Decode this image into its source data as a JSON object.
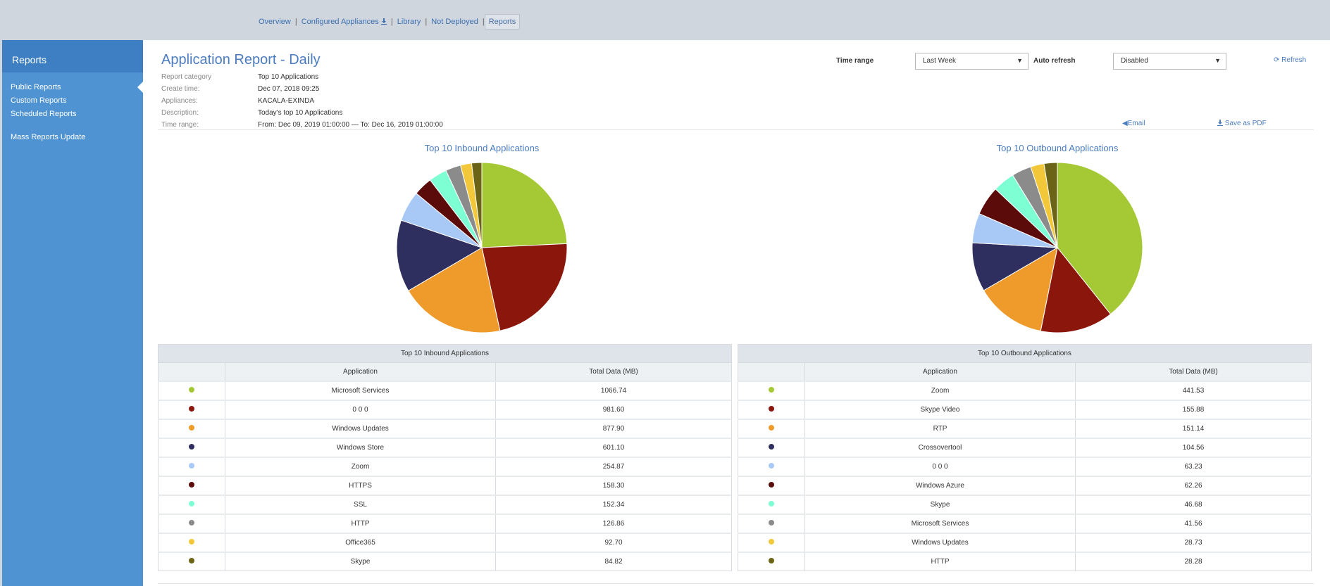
{
  "nav": {
    "items": [
      "Overview",
      "Configured Appliances",
      "Library",
      "Not Deployed",
      "Reports"
    ],
    "separator": "|"
  },
  "sidebar": {
    "title": "Reports",
    "items": [
      "Public Reports",
      "Custom Reports",
      "Scheduled Reports",
      "Mass Reports Update"
    ]
  },
  "report": {
    "title": "Application Report - Daily",
    "meta": [
      {
        "label": "Report category",
        "value": "Top 10 Applications"
      },
      {
        "label": "Create time:",
        "value": "Dec 07, 2018 09:25"
      },
      {
        "label": "Appliances:",
        "value": "KACALA-EXINDA"
      },
      {
        "label": "Description:",
        "value": "Today's top 10 Applications"
      },
      {
        "label": "Time range:",
        "value": "From: Dec 09, 2019 01:00:00 — To: Dec 16, 2019 01:00:00"
      }
    ]
  },
  "controls": {
    "time_range_label": "Time range",
    "time_range_value": "Last Week",
    "auto_refresh_label": "Auto refresh",
    "auto_refresh_value": "Disabled",
    "refresh_label": "Refresh",
    "email_label": "Email",
    "pdf_label": "Save as PDF"
  },
  "colors": [
    "#a5c934",
    "#8b160c",
    "#ee9b2b",
    "#2f2f5f",
    "#a8c9f5",
    "#5c0b0b",
    "#7effd3",
    "#8b8b8b",
    "#f2c83a",
    "#6b6416"
  ],
  "chart_data": [
    {
      "type": "pie",
      "title": "Top 10 Inbound Applications",
      "categories": [
        "Microsoft Services",
        "0 0 0",
        "Windows Updates",
        "Windows Store",
        "Zoom",
        "HTTPS",
        "SSL",
        "HTTP",
        "Office365",
        "Skype"
      ],
      "values": [
        1066.74,
        981.6,
        877.9,
        601.1,
        254.87,
        158.3,
        152.34,
        126.86,
        92.7,
        84.82
      ]
    },
    {
      "type": "pie",
      "title": "Top 10 Outbound Applications",
      "categories": [
        "Zoom",
        "Skype Video",
        "RTP",
        "Crossovertool",
        "0 0 0",
        "Windows Azure",
        "Skype",
        "Microsoft Services",
        "Windows Updates",
        "HTTP"
      ],
      "values": [
        441.53,
        155.88,
        151.14,
        104.56,
        63.23,
        62.26,
        46.68,
        41.56,
        28.73,
        28.28
      ]
    }
  ],
  "tables": [
    {
      "caption": "Top 10 Inbound Applications",
      "col_app": "Application",
      "col_total": "Total Data (MB)",
      "rows": [
        {
          "app": "Microsoft Services",
          "total": "1066.74"
        },
        {
          "app": "0 0 0",
          "total": "981.60"
        },
        {
          "app": "Windows Updates",
          "total": "877.90"
        },
        {
          "app": "Windows Store",
          "total": "601.10"
        },
        {
          "app": "Zoom",
          "total": "254.87"
        },
        {
          "app": "HTTPS",
          "total": "158.30"
        },
        {
          "app": "SSL",
          "total": "152.34"
        },
        {
          "app": "HTTP",
          "total": "126.86"
        },
        {
          "app": "Office365",
          "total": "92.70"
        },
        {
          "app": "Skype",
          "total": "84.82"
        }
      ]
    },
    {
      "caption": "Top 10 Outbound Applications",
      "col_app": "Application",
      "col_total": "Total Data (MB)",
      "rows": [
        {
          "app": "Zoom",
          "total": "441.53"
        },
        {
          "app": "Skype Video",
          "total": "155.88"
        },
        {
          "app": "RTP",
          "total": "151.14"
        },
        {
          "app": "Crossovertool",
          "total": "104.56"
        },
        {
          "app": "0 0 0",
          "total": "63.23"
        },
        {
          "app": "Windows Azure",
          "total": "62.26"
        },
        {
          "app": "Skype",
          "total": "46.68"
        },
        {
          "app": "Microsoft Services",
          "total": "41.56"
        },
        {
          "app": "Windows Updates",
          "total": "28.73"
        },
        {
          "app": "HTTP",
          "total": "28.28"
        }
      ]
    }
  ]
}
